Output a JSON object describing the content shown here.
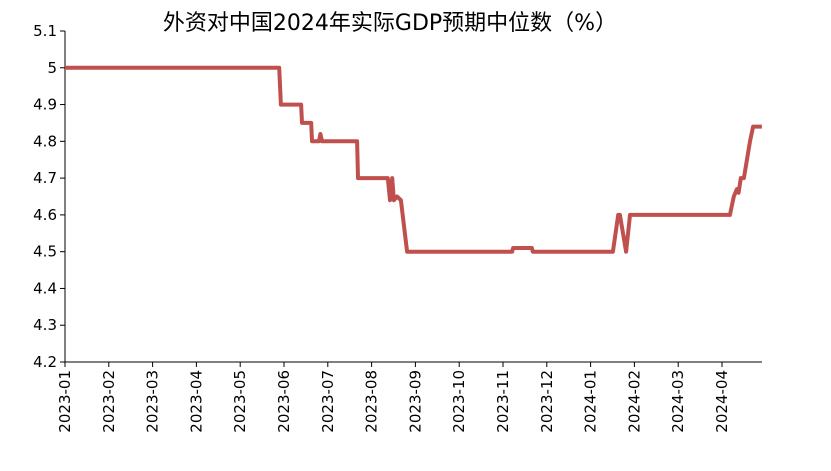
{
  "chart_data": {
    "type": "line",
    "title": "外资对中国2024年实际GDP预期中位数（%）",
    "xlabel": "",
    "ylabel": "",
    "ylim": [
      4.2,
      5.1
    ],
    "yticks": [
      "5.1",
      "5",
      "4.9",
      "4.8",
      "4.7",
      "4.6",
      "4.5",
      "4.4",
      "4.3",
      "4.2"
    ],
    "ytick_values": [
      5.1,
      5.0,
      4.9,
      4.8,
      4.7,
      4.6,
      4.5,
      4.4,
      4.3,
      4.2
    ],
    "xticks": [
      "2023-01",
      "2023-02",
      "2023-03",
      "2023-04",
      "2023-05",
      "2023-06",
      "2023-07",
      "2023-08",
      "2023-09",
      "2023-10",
      "2023-11",
      "2023-12",
      "2024-01",
      "2024-02",
      "2024-03",
      "2024-04"
    ],
    "x_unit": "months since 2023-01",
    "xlim": [
      0,
      15.91
    ],
    "grid": false,
    "line_color": "#c0504d",
    "series": [
      {
        "name": "GDP预期中位数",
        "points": [
          [
            0,
            5.0
          ],
          [
            4.89,
            5.0
          ],
          [
            4.93,
            4.9
          ],
          [
            5.39,
            4.9
          ],
          [
            5.41,
            4.85
          ],
          [
            5.62,
            4.85
          ],
          [
            5.64,
            4.8
          ],
          [
            5.8,
            4.8
          ],
          [
            5.83,
            4.82
          ],
          [
            5.87,
            4.8
          ],
          [
            6.67,
            4.8
          ],
          [
            6.69,
            4.7
          ],
          [
            7.37,
            4.7
          ],
          [
            7.42,
            4.64
          ],
          [
            7.47,
            4.7
          ],
          [
            7.51,
            4.64
          ],
          [
            7.58,
            4.65
          ],
          [
            7.67,
            4.64
          ],
          [
            7.81,
            4.5
          ],
          [
            10.21,
            4.5
          ],
          [
            10.23,
            4.51
          ],
          [
            10.66,
            4.51
          ],
          [
            10.68,
            4.5
          ],
          [
            12.51,
            4.5
          ],
          [
            12.63,
            4.6
          ],
          [
            12.67,
            4.6
          ],
          [
            12.81,
            4.5
          ],
          [
            12.9,
            4.6
          ],
          [
            15.18,
            4.6
          ],
          [
            15.27,
            4.65
          ],
          [
            15.34,
            4.67
          ],
          [
            15.38,
            4.66
          ],
          [
            15.43,
            4.7
          ],
          [
            15.5,
            4.7
          ],
          [
            15.64,
            4.8
          ],
          [
            15.71,
            4.84
          ],
          [
            15.91,
            4.84
          ]
        ]
      }
    ]
  }
}
